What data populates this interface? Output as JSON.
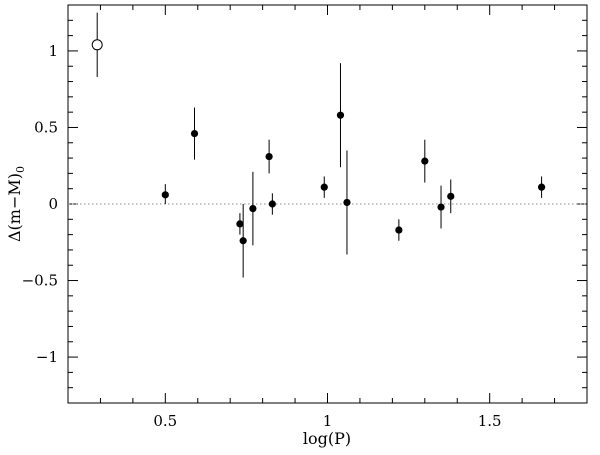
{
  "chart_data": {
    "type": "scatter",
    "xlabel": "log(P)",
    "ylabel": "Δ(m−M)",
    "ylabel_subscript": "0",
    "xlim": [
      0.2,
      1.8
    ],
    "ylim": [
      -1.3,
      1.3
    ],
    "x_ticks": [
      {
        "value": 0.5,
        "label": "0.5"
      },
      {
        "value": 1.0,
        "label": "1"
      },
      {
        "value": 1.5,
        "label": "1.5"
      }
    ],
    "y_ticks": [
      {
        "value": 1.0,
        "label": "1"
      },
      {
        "value": 0.5,
        "label": "0.5"
      },
      {
        "value": 0.0,
        "label": "0"
      },
      {
        "value": -0.5,
        "label": "−0.5"
      },
      {
        "value": -1.0,
        "label": "−1"
      }
    ],
    "reference_line": {
      "y": 0,
      "style": "dotted"
    },
    "grid": false,
    "series": [
      {
        "marker": "open-circle",
        "points": [
          {
            "x": 0.29,
            "y": 1.04,
            "ylow": 0.83,
            "yhigh": 1.25
          }
        ]
      },
      {
        "marker": "filled-circle",
        "points": [
          {
            "x": 0.5,
            "y": 0.06,
            "ylow": 0.0,
            "yhigh": 0.13
          },
          {
            "x": 0.59,
            "y": 0.46,
            "ylow": 0.29,
            "yhigh": 0.63
          },
          {
            "x": 0.73,
            "y": -0.13,
            "ylow": -0.2,
            "yhigh": -0.06
          },
          {
            "x": 0.74,
            "y": -0.24,
            "ylow": -0.48,
            "yhigh": 0.0
          },
          {
            "x": 0.77,
            "y": -0.03,
            "ylow": -0.27,
            "yhigh": 0.21
          },
          {
            "x": 0.82,
            "y": 0.31,
            "ylow": 0.2,
            "yhigh": 0.42
          },
          {
            "x": 0.83,
            "y": 0.0,
            "ylow": -0.07,
            "yhigh": 0.07
          },
          {
            "x": 0.99,
            "y": 0.11,
            "ylow": 0.04,
            "yhigh": 0.18
          },
          {
            "x": 1.04,
            "y": 0.58,
            "ylow": 0.24,
            "yhigh": 0.92
          },
          {
            "x": 1.06,
            "y": 0.01,
            "ylow": -0.33,
            "yhigh": 0.35
          },
          {
            "x": 1.22,
            "y": -0.17,
            "ylow": -0.24,
            "yhigh": -0.1
          },
          {
            "x": 1.3,
            "y": 0.28,
            "ylow": 0.14,
            "yhigh": 0.42
          },
          {
            "x": 1.35,
            "y": -0.02,
            "ylow": -0.16,
            "yhigh": 0.12
          },
          {
            "x": 1.38,
            "y": 0.05,
            "ylow": -0.06,
            "yhigh": 0.16
          },
          {
            "x": 1.66,
            "y": 0.11,
            "ylow": 0.04,
            "yhigh": 0.18
          }
        ]
      }
    ]
  }
}
